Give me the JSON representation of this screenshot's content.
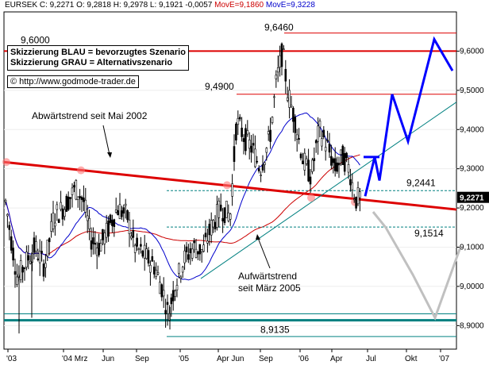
{
  "header": {
    "symbol": "EURSEK",
    "close": "C: 9,2271",
    "open": "O: 9,2818",
    "high": "H: 9,2978",
    "low": "L: 9,1921",
    "change": "-0,0057",
    "mov1": "MovE=9,1860",
    "mov2": "MovE=9,3228"
  },
  "notes": {
    "line1": "Skizzierung BLAU = bevorzugtes Szenario",
    "line2": "Skizzierung GRAU = Alternativszenario",
    "url": "© http://www.godmode-trader.de"
  },
  "annotations": {
    "downtrend": "Abwärtstrend seit Mai 2002",
    "uptrend_l1": "Aufwärtstrend",
    "uptrend_l2": "seit März 2005"
  },
  "chart_data": {
    "type": "candlestick",
    "title": "",
    "xlabel": "",
    "ylabel": "",
    "ylim": [
      8.84,
      9.7
    ],
    "x_ticks": [
      "'03",
      "'04 Mrz",
      "Jun",
      "Sep",
      "'05",
      "Apr Jun",
      "Sep",
      "'06",
      "Apr",
      "Jul",
      "Okt",
      "'07"
    ],
    "y_ticks": [
      "9,6000",
      "9,5000",
      "9,4000",
      "9,3000",
      "9,2000",
      "9,1000",
      "9,0000",
      "8,9000"
    ],
    "last_price": "9,2271",
    "levels": [
      {
        "value": 9.6,
        "label": "9,6000",
        "color": "#dd0000"
      },
      {
        "value": 9.646,
        "label": "9,6460",
        "color": "#dd0000"
      },
      {
        "value": 9.49,
        "label": "9,4900",
        "color": "#dd0000"
      },
      {
        "value": 9.2441,
        "label": "9,2441",
        "color": "#008080"
      },
      {
        "value": 9.1514,
        "label": "9,1514",
        "color": "#008080"
      },
      {
        "value": 8.9135,
        "label": "8,9135",
        "color": "#008080"
      }
    ],
    "series": [
      {
        "name": "MovE=9,1860",
        "color": "#cc0000"
      },
      {
        "name": "MovE=9,3228",
        "color": "#0000cc"
      }
    ],
    "scenario_blue": [
      9.23,
      9.33,
      9.27,
      9.49,
      9.37,
      9.63,
      9.55
    ],
    "scenario_grey": [
      9.19,
      9.15,
      9.03,
      8.92,
      9.1
    ]
  }
}
